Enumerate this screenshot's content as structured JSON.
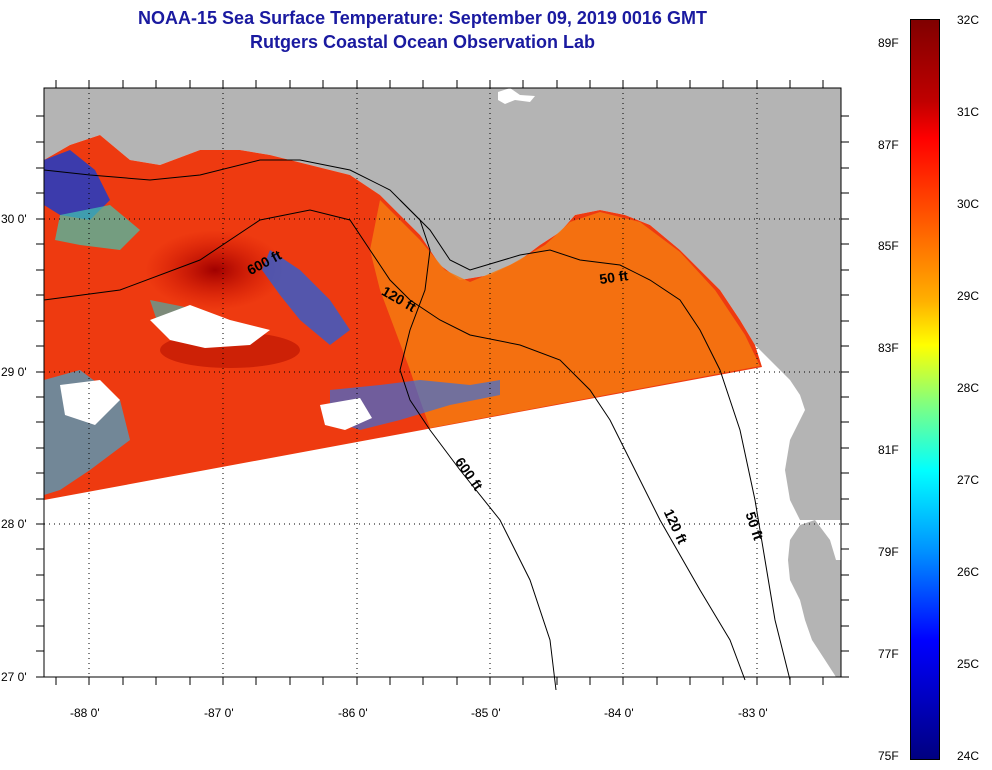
{
  "header": {
    "title_line1": "NOAA-15 Sea Surface Temperature:  September 09, 2019 0016 GMT",
    "title_line2": "Rutgers Coastal Ocean Observation Lab"
  },
  "map": {
    "y_axis_labels": [
      "30 0'",
      "29 0'",
      "28 0'",
      "27 0'"
    ],
    "x_axis_labels": [
      "-88 0'",
      "-87 0'",
      "-86 0'",
      "-85 0'",
      "-84 0'",
      "-83 0'"
    ],
    "contour_labels": [
      "600 ft",
      "120 ft",
      "50 ft",
      "600 ft",
      "120 ft",
      "50 ft"
    ],
    "land_color": "#b4b4b4",
    "no_data_color": "#ffffff"
  },
  "colorbar": {
    "celsius_labels": [
      "32C",
      "31C",
      "30C",
      "29C",
      "28C",
      "27C",
      "26C",
      "25C",
      "24C"
    ],
    "fahrenheit_labels": [
      "89F",
      "87F",
      "85F",
      "83F",
      "81F",
      "79F",
      "77F",
      "75F"
    ],
    "colors": [
      "#800000",
      "#ff0000",
      "#ff8000",
      "#ffff00",
      "#80ff80",
      "#00ffff",
      "#0080ff",
      "#0000ff",
      "#000080"
    ]
  }
}
